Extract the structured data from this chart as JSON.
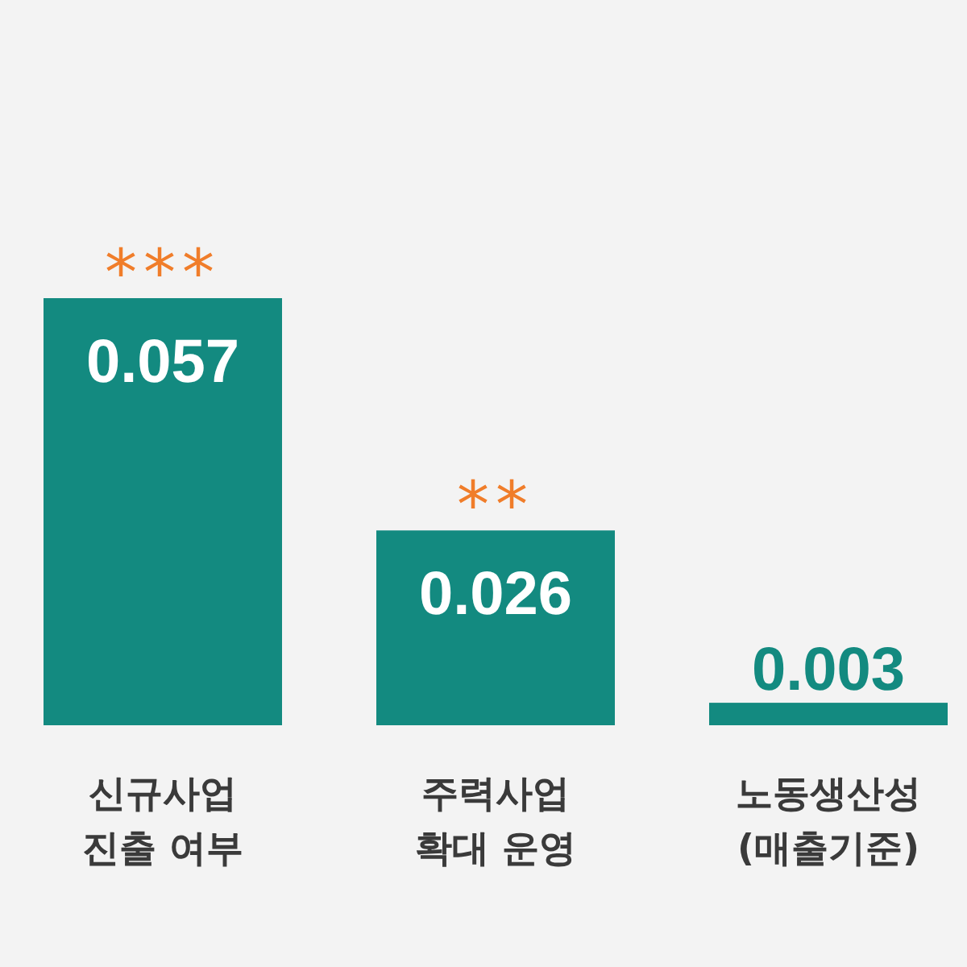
{
  "chart_data": {
    "type": "bar",
    "categories": [
      "신규사업\n진출 여부",
      "주력사업\n확대 운영",
      "노동생산성\n(매출기준)"
    ],
    "values": [
      0.057,
      0.026,
      0.003
    ],
    "color": "#138a80",
    "data_labels": true,
    "annotations": [
      {
        "text": "***",
        "x": "신규사업\n진출 여부",
        "y": 0.057
      },
      {
        "text": "**",
        "x": "주력사업\n확대 운영",
        "y": 0.026
      }
    ]
  }
}
